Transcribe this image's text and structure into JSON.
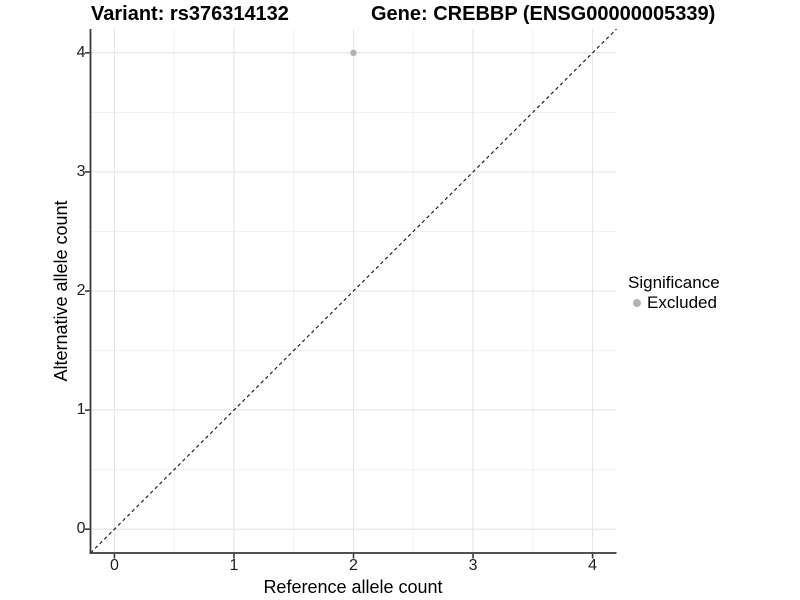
{
  "titles": {
    "variant": "Variant: rs376314132",
    "gene": "Gene: CREBBP (ENSG00000005339)"
  },
  "chart_data": {
    "type": "scatter",
    "title": "Variant: rs376314132   Gene: CREBBP (ENSG00000005339)",
    "xlabel": "Reference allele count",
    "ylabel": "Alternative allele count",
    "xlim": [
      -0.2,
      4.2
    ],
    "ylim": [
      -0.2,
      4.2
    ],
    "x_ticks": [
      0,
      1,
      2,
      3,
      4
    ],
    "y_ticks": [
      0,
      1,
      2,
      3,
      4
    ],
    "x_minor_ticks": [
      0.5,
      1.5,
      2.5,
      3.5
    ],
    "y_minor_ticks": [
      0.5,
      1.5,
      2.5,
      3.5
    ],
    "grid": true,
    "points": [
      {
        "x": 2,
        "y": 4,
        "series": "Excluded"
      }
    ],
    "reference_line": {
      "style": "dashed",
      "from": [
        -0.2,
        -0.2
      ],
      "to": [
        4.2,
        4.2
      ]
    },
    "legend": {
      "title": "Significance",
      "position": "right",
      "entries": [
        {
          "label": "Excluded",
          "marker": "circle",
          "color": "#b3b3b3"
        }
      ]
    }
  },
  "colors": {
    "point": "#b3b3b3",
    "axis_line": "#383838",
    "tick_mark": "#383838",
    "tick_text": "#1f1f1f",
    "grid_major": "#e4e4e4",
    "grid_minor": "#f0f0f0",
    "dashed_line": "#111111",
    "background": "#ffffff"
  }
}
